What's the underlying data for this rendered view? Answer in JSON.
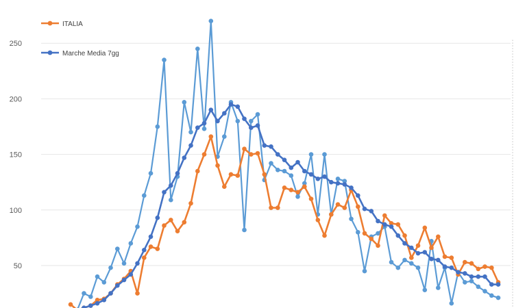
{
  "chart_data": {
    "type": "line",
    "title": "",
    "xlabel": "",
    "ylabel": "",
    "ylim": [
      10,
      275
    ],
    "yticks": [
      50,
      100,
      150,
      200,
      250
    ],
    "grid": false,
    "legend": {
      "placement": "top-left"
    },
    "series": [
      {
        "name": "ITALIA",
        "color": "#ED7D31",
        "legend": true,
        "values": [
          15,
          10,
          12,
          14,
          19,
          20,
          25,
          33,
          38,
          45,
          25,
          57,
          67,
          65,
          86,
          91,
          81,
          89,
          106,
          135,
          150,
          166,
          140,
          121,
          132,
          131,
          155,
          150,
          151,
          132,
          102,
          102,
          120,
          118,
          116,
          121,
          110,
          91,
          77,
          96,
          105,
          102,
          118,
          103,
          79,
          74,
          68,
          95,
          88,
          87,
          77,
          57,
          68,
          84,
          66,
          76,
          58,
          57,
          42,
          53,
          52,
          47,
          49,
          48,
          35
        ]
      },
      {
        "name": "Marche Media 7gg",
        "color": "#4472C4",
        "legend": true,
        "values": [
          10,
          10,
          12,
          14,
          16,
          19,
          25,
          32,
          37,
          42,
          52,
          64,
          76,
          93,
          116,
          122,
          133,
          147,
          158,
          174,
          178,
          190,
          180,
          187,
          195,
          193,
          182,
          174,
          176,
          158,
          157,
          150,
          145,
          138,
          143,
          135,
          132,
          128,
          130,
          125,
          124,
          123,
          120,
          113,
          101,
          99,
          90,
          87,
          85,
          77,
          70,
          66,
          61,
          62,
          56,
          55,
          49,
          48,
          44,
          43,
          40,
          40,
          40,
          33,
          33
        ]
      },
      {
        "name": "",
        "color": "#5B9BD5",
        "legend": false,
        "values": [
          5,
          10,
          25,
          22,
          40,
          35,
          48,
          65,
          52,
          70,
          85,
          113,
          133,
          175,
          235,
          109,
          130,
          197,
          170,
          245,
          173,
          270,
          148,
          166,
          197,
          180,
          82,
          180,
          186,
          127,
          142,
          136,
          135,
          131,
          112,
          124,
          150,
          96,
          150,
          96,
          128,
          126,
          92,
          80,
          45,
          76,
          79,
          85,
          53,
          48,
          55,
          52,
          48,
          28,
          72,
          30,
          48,
          16,
          44,
          35,
          36,
          31,
          27,
          23,
          21
        ]
      }
    ]
  }
}
